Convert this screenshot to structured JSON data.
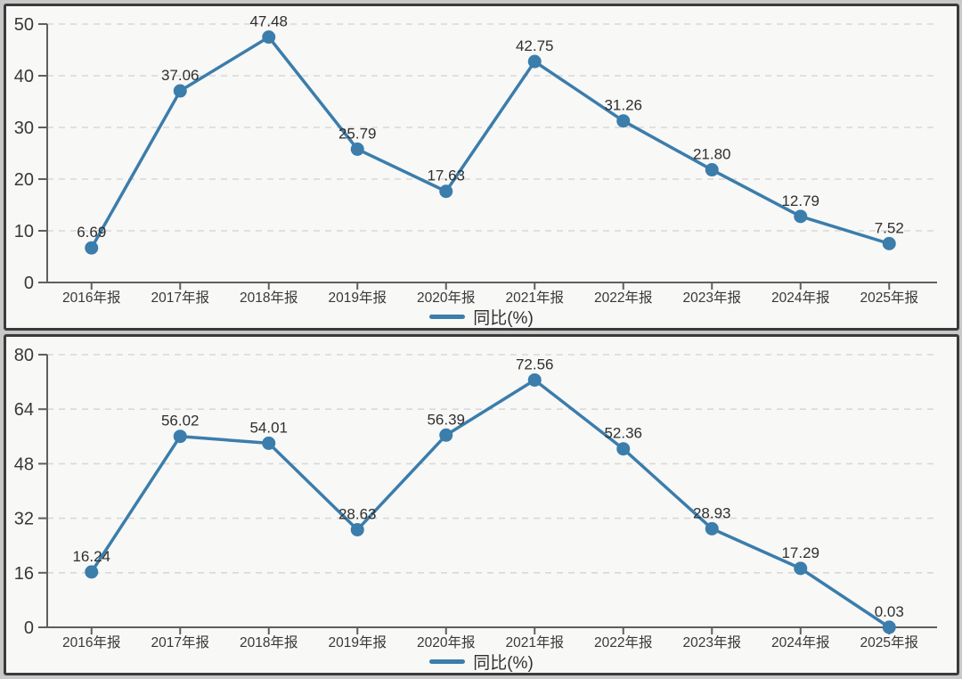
{
  "page": {
    "background": "#c8c8c8"
  },
  "panel": {
    "border_color": "#3b3b3b",
    "background": "#f8f8f7"
  },
  "colors": {
    "line": "#3b7dab",
    "marker_fill": "#3b7dab",
    "grid": "#d8d8d8",
    "axis": "#5f5f5f",
    "tick_text": "#383838",
    "data_label": "#2f2f2f"
  },
  "chart_data": [
    {
      "type": "line",
      "title": "",
      "categories": [
        "2016年报",
        "2017年报",
        "2018年报",
        "2019年报",
        "2020年报",
        "2021年报",
        "2022年报",
        "2023年报",
        "2024年报",
        "2025年报"
      ],
      "series": [
        {
          "name": "同比(%)",
          "values": [
            6.69,
            37.06,
            47.48,
            25.79,
            17.63,
            42.75,
            31.26,
            21.8,
            12.79,
            7.52
          ]
        }
      ],
      "ylim": [
        0,
        50
      ],
      "yticks": [
        0,
        10,
        20,
        30,
        40,
        50
      ],
      "xlabel": "",
      "ylabel": "",
      "grid": "horizontal-dashed",
      "legend_position": "bottom",
      "marker": "circle",
      "data_labels": true,
      "data_label_decimals": 2
    },
    {
      "type": "line",
      "title": "",
      "categories": [
        "2016年报",
        "2017年报",
        "2018年报",
        "2019年报",
        "2020年报",
        "2021年报",
        "2022年报",
        "2023年报",
        "2024年报",
        "2025年报"
      ],
      "series": [
        {
          "name": "同比(%)",
          "values": [
            16.24,
            56.02,
            54.01,
            28.63,
            56.39,
            72.56,
            52.36,
            28.93,
            17.29,
            0.03
          ]
        }
      ],
      "ylim": [
        0,
        80
      ],
      "yticks": [
        0,
        16,
        32,
        48,
        64,
        80
      ],
      "xlabel": "",
      "ylabel": "",
      "grid": "horizontal-dashed",
      "legend_position": "bottom",
      "marker": "circle",
      "data_labels": true,
      "data_label_decimals": 2
    }
  ]
}
